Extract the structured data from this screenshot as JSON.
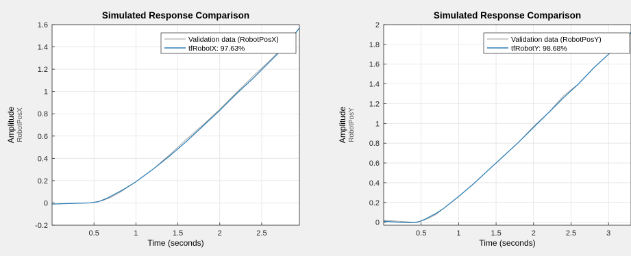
{
  "chart_data": [
    {
      "type": "line",
      "title": "Simulated Response Comparison",
      "xlabel": "Time (seconds)",
      "ylabel": "Amplitude",
      "ylabel_sub": "RobotPosX",
      "xlim": [
        0,
        2.95
      ],
      "ylim": [
        -0.2,
        1.6
      ],
      "xticks": [
        0.5,
        1,
        1.5,
        2,
        2.5
      ],
      "yticks": [
        -0.2,
        0,
        0.2,
        0.4,
        0.6,
        0.8,
        1,
        1.2,
        1.4,
        1.6
      ],
      "grid": true,
      "legend_position": "top-right",
      "series": [
        {
          "name": "Validation data (RobotPosX)",
          "color": "#9a9a9a",
          "x": [
            0,
            0.2,
            0.45,
            0.6,
            0.7,
            0.8,
            0.9,
            1.0,
            1.2,
            1.4,
            1.6,
            1.8,
            2.0,
            2.2,
            2.4,
            2.6,
            2.8,
            2.95
          ],
          "y": [
            -0.01,
            -0.005,
            0.0,
            0.02,
            0.05,
            0.09,
            0.14,
            0.19,
            0.3,
            0.43,
            0.57,
            0.7,
            0.84,
            0.99,
            1.14,
            1.28,
            1.43,
            1.57
          ]
        },
        {
          "name": "tfRobotX: 97.63%",
          "color": "#2f7fb5",
          "x": [
            0,
            0.2,
            0.45,
            0.55,
            0.65,
            0.75,
            0.85,
            1.0,
            1.2,
            1.4,
            1.6,
            1.8,
            2.0,
            2.2,
            2.4,
            2.6,
            2.8,
            2.95
          ],
          "y": [
            -0.01,
            -0.005,
            0.0,
            0.01,
            0.04,
            0.08,
            0.12,
            0.19,
            0.3,
            0.42,
            0.55,
            0.69,
            0.83,
            0.98,
            1.12,
            1.27,
            1.42,
            1.57
          ]
        }
      ]
    },
    {
      "type": "line",
      "title": "Simulated Response Comparison",
      "xlabel": "Time (seconds)",
      "ylabel": "Amplitude",
      "ylabel_sub": "RobotPosY",
      "xlim": [
        0,
        3.3
      ],
      "ylim": [
        -0.03,
        2.0
      ],
      "xticks": [
        0.5,
        1,
        1.5,
        2,
        2.5,
        3
      ],
      "yticks": [
        0,
        0.2,
        0.4,
        0.6,
        0.8,
        1,
        1.2,
        1.4,
        1.6,
        1.8,
        2
      ],
      "grid": true,
      "legend_position": "top-right",
      "series": [
        {
          "name": "Validation data (RobotPosY)",
          "color": "#9a9a9a",
          "x": [
            0,
            0.2,
            0.4,
            0.5,
            0.6,
            0.7,
            0.8,
            1.0,
            1.2,
            1.4,
            1.6,
            1.8,
            2.0,
            2.2,
            2.4,
            2.6,
            2.8,
            3.0,
            3.2,
            3.3
          ],
          "y": [
            0.02,
            0.01,
            0.0,
            0.01,
            0.04,
            0.08,
            0.14,
            0.26,
            0.39,
            0.53,
            0.67,
            0.81,
            0.97,
            1.11,
            1.28,
            1.4,
            1.56,
            1.7,
            1.83,
            1.92
          ]
        },
        {
          "name": "tfRobotY: 98.68%",
          "color": "#2f7fb5",
          "x": [
            0,
            0.2,
            0.35,
            0.45,
            0.55,
            0.7,
            0.8,
            1.0,
            1.2,
            1.4,
            1.6,
            1.8,
            2.0,
            2.2,
            2.4,
            2.6,
            2.8,
            3.0,
            3.2,
            3.3
          ],
          "y": [
            0.01,
            0.0,
            -0.005,
            0.0,
            0.03,
            0.09,
            0.14,
            0.26,
            0.39,
            0.53,
            0.67,
            0.81,
            0.96,
            1.11,
            1.26,
            1.4,
            1.56,
            1.7,
            1.84,
            1.92
          ]
        }
      ]
    }
  ]
}
